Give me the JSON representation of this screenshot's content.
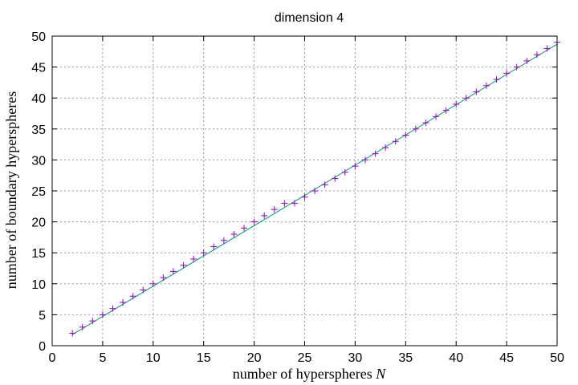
{
  "chart_data": {
    "type": "scatter",
    "title": "dimension 4",
    "xlabel": "number of hyperspheres",
    "xlabel_var": "N",
    "ylabel": "number of boundary hyperspheres",
    "xlim": [
      0,
      50
    ],
    "ylim": [
      0,
      50
    ],
    "xticks": [
      0,
      5,
      10,
      15,
      20,
      25,
      30,
      35,
      40,
      45,
      50
    ],
    "yticks": [
      0,
      5,
      10,
      15,
      20,
      25,
      30,
      35,
      40,
      45,
      50
    ],
    "grid": true,
    "points_color": "#9400d3",
    "fit_color": "#009e73",
    "points": {
      "x": [
        2,
        3,
        4,
        5,
        6,
        7,
        8,
        9,
        10,
        11,
        12,
        13,
        14,
        15,
        16,
        17,
        18,
        19,
        20,
        21,
        22,
        23,
        24,
        25,
        26,
        27,
        28,
        29,
        30,
        31,
        32,
        33,
        34,
        35,
        36,
        37,
        38,
        39,
        40,
        41,
        42,
        43,
        44,
        45,
        46,
        47,
        48,
        49,
        50
      ],
      "y": [
        2,
        3,
        4,
        5,
        6,
        7,
        8,
        9,
        10,
        11,
        12,
        13,
        14,
        15,
        16,
        17,
        18,
        19,
        20,
        21,
        22,
        23,
        23,
        24,
        25,
        26,
        27,
        28,
        29,
        30,
        31,
        32,
        33,
        34,
        35,
        36,
        37,
        38,
        39,
        40,
        41,
        42,
        43,
        44,
        45,
        46,
        47,
        48,
        49
      ]
    },
    "fit_line": {
      "x": [
        2,
        50
      ],
      "y": [
        1.8,
        48.7
      ]
    }
  }
}
